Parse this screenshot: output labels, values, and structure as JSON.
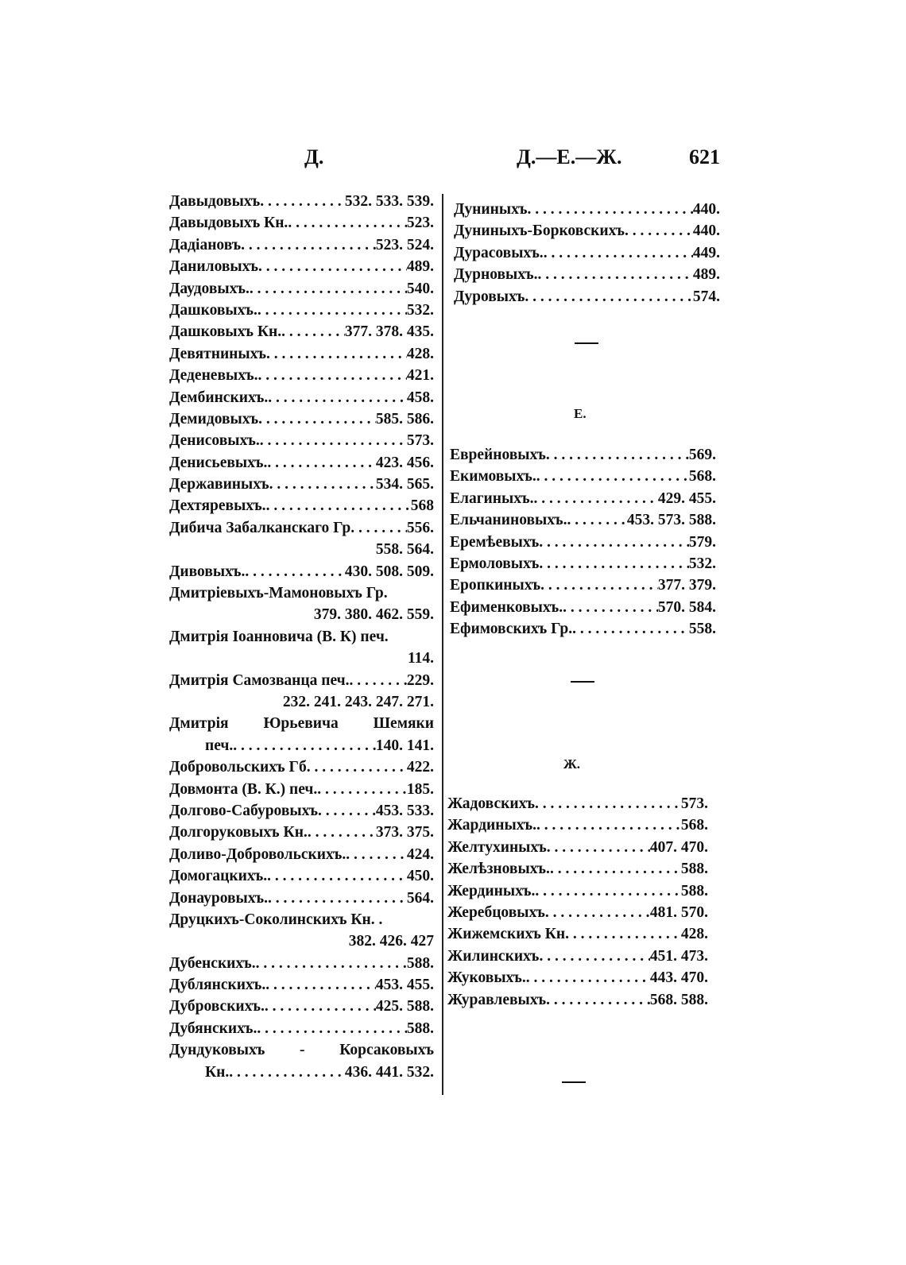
{
  "header": {
    "left": "Д.",
    "center": "Д.—Е.—Ж.",
    "page_number": "621"
  },
  "left_column": [
    {
      "name": "Давыдовыхъ",
      "pages": "532. 533. 539."
    },
    {
      "name": "Давыдовыхъ Кн.",
      "pages": "523."
    },
    {
      "name": "Дадіановъ",
      "pages": "523. 524."
    },
    {
      "name": "Даниловыхъ",
      "pages": "489."
    },
    {
      "name": "Даудовыхъ.",
      "pages": "540."
    },
    {
      "name": "Дашковыхъ.",
      "pages": "532."
    },
    {
      "name": "Дашковыхъ Кн.",
      "pages": "377. 378. 435."
    },
    {
      "name": "Девятниныхъ",
      "pages": "428."
    },
    {
      "name": "Деденевыхъ.",
      "pages": "421."
    },
    {
      "name": "Дембинскихъ.",
      "pages": "458."
    },
    {
      "name": "Демидовыхъ",
      "pages": "585. 586."
    },
    {
      "name": "Денисовыхъ.",
      "pages": "573."
    },
    {
      "name": "Денисьевыхъ.",
      "pages": "423. 456."
    },
    {
      "name": "Державиныхъ",
      "pages": "534. 565."
    },
    {
      "name": "Дехтяревыхъ.",
      "pages": "568"
    },
    {
      "name": "Дибича Забалканскаго Гр",
      "pages": "556.",
      "cont": "558. 564."
    },
    {
      "name": "Дивовыхъ.",
      "pages": "430. 508. 509."
    },
    {
      "name": "Дмитріевыхъ-Мамоновыхъ Гр.",
      "cont": "379. 380. 462. 559."
    },
    {
      "name": "Дмитрія Іоанновича (В. К) печ.",
      "cont": "114."
    },
    {
      "name": "Дмитрія Самозванца печ.",
      "pages": "229.",
      "cont": "232. 241. 243. 247. 271."
    },
    {
      "name": "Дмитрія Юрьевича Шемяки",
      "justify": true,
      "cont_name": "печ.",
      "cont_pages": "140. 141."
    },
    {
      "name": "Добровольскихъ Гб",
      "pages": "422."
    },
    {
      "name": "Довмонта (В. К.) печ.",
      "pages": "185."
    },
    {
      "name": "Долгово-Сабуровыхъ",
      "pages": "453. 533."
    },
    {
      "name": "Долгоруковыхъ Кн.",
      "pages": "373. 375."
    },
    {
      "name": "Доливо-Добровольскихъ.",
      "pages": "424."
    },
    {
      "name": "Домогацкихъ.",
      "pages": "450."
    },
    {
      "name": "Донауровыхъ.",
      "pages": "564."
    },
    {
      "name": "Друцкихъ-Соколинскихъ Кн. .",
      "cont": "382. 426. 427"
    },
    {
      "name": "Дубенскихъ.",
      "pages": "588."
    },
    {
      "name": "Дублянскихъ.",
      "pages": "453. 455."
    },
    {
      "name": "Дубровскихъ.",
      "pages": "425. 588."
    },
    {
      "name": "Дубянскихъ.",
      "pages": "588."
    },
    {
      "name": "Дундуковыхъ - Корсаковыхъ",
      "justify": true,
      "cont_name": "Кн.",
      "cont_pages": "436. 441. 532."
    }
  ],
  "right_column_d": [
    {
      "name": "Дуниныхъ",
      "pages": "440."
    },
    {
      "name": "Дуниныхъ-Борковскихъ",
      "pages": "440."
    },
    {
      "name": "Дурасовыхъ.",
      "pages": "449."
    },
    {
      "name": "Дурновыхъ.",
      "pages": "489."
    },
    {
      "name": "Дуровыхъ",
      "pages": "574."
    }
  ],
  "section_e": {
    "heading": "Е.",
    "entries": [
      {
        "name": "Еврейновыхъ",
        "pages": "569."
      },
      {
        "name": "Екимовыхъ.",
        "pages": "568."
      },
      {
        "name": "Елагиныхъ.",
        "pages": "429. 455."
      },
      {
        "name": "Ельчаниновыхъ.",
        "pages": "453. 573. 588."
      },
      {
        "name": "Еремѣевыхъ",
        "pages": "579."
      },
      {
        "name": "Ермоловыхъ",
        "pages": "532."
      },
      {
        "name": "Еропкиныхъ",
        "pages": "377. 379."
      },
      {
        "name": "Ефименковыхъ.",
        "pages": "570. 584."
      },
      {
        "name": "Ефимовскихъ Гр.",
        "pages": "558."
      }
    ]
  },
  "section_zh": {
    "heading": "Ж.",
    "entries": [
      {
        "name": "Жадовскихъ",
        "pages": "573."
      },
      {
        "name": "Жардиныхъ.",
        "pages": "568."
      },
      {
        "name": "Желтухиныхъ",
        "pages": "407. 470."
      },
      {
        "name": "Желѣзновыхъ.",
        "pages": "588."
      },
      {
        "name": "Жердиныхъ.",
        "pages": "588."
      },
      {
        "name": "Жеребцовыхъ",
        "pages": "481. 570."
      },
      {
        "name": "Жижемскихъ Кн",
        "pages": "428."
      },
      {
        "name": "Жилинскихъ",
        "pages": "451. 473."
      },
      {
        "name": "Жуковыхъ.",
        "pages": "443. 470."
      },
      {
        "name": "Журавлевыхъ",
        "pages": "568. 588."
      }
    ]
  }
}
